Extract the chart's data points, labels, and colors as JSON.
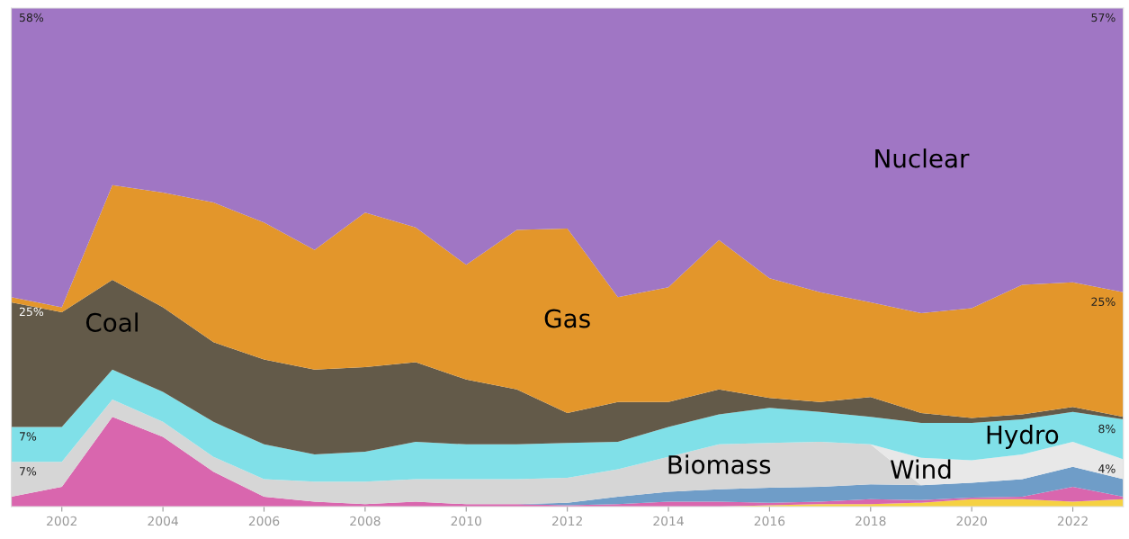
{
  "chart_data": {
    "type": "area",
    "stacked": true,
    "x": [
      2001,
      2002,
      2003,
      2004,
      2005,
      2006,
      2007,
      2008,
      2009,
      2010,
      2011,
      2012,
      2013,
      2014,
      2015,
      2016,
      2017,
      2018,
      2019,
      2020,
      2021,
      2022,
      2023
    ],
    "xlim": [
      2001,
      2023
    ],
    "xticks": [
      2002,
      2004,
      2006,
      2008,
      2010,
      2012,
      2014,
      2016,
      2018,
      2020,
      2022
    ],
    "ylim": [
      0,
      100
    ],
    "tick_labels": "x",
    "grid": false,
    "legend": false,
    "series": [
      {
        "color": "#f5d142",
        "values": [
          0,
          0,
          0,
          0,
          0,
          0,
          0,
          0,
          0,
          0,
          0,
          0,
          0,
          0,
          0,
          0.3,
          0.5,
          0.5,
          0.8,
          1.5,
          1.5,
          1,
          1.5
        ]
      },
      {
        "color": "#d966ae",
        "values": [
          2,
          4,
          18,
          14,
          7,
          2,
          1,
          0.5,
          1,
          0.5,
          0.5,
          0.3,
          0.5,
          1,
          1,
          0.5,
          0.5,
          1,
          0.5,
          0.3,
          0.5,
          3,
          0.5
        ]
      },
      {
        "color": "#6f9dc8",
        "values": [
          0,
          0,
          0,
          0,
          0,
          0,
          0,
          0,
          0,
          0,
          0,
          0.5,
          1.5,
          2,
          2.5,
          3,
          3,
          3,
          3,
          3,
          3.5,
          4,
          3.5
        ]
      },
      {
        "name": "Biomass",
        "color": "#d6d6d6",
        "values": [
          7,
          5,
          3.5,
          3,
          3,
          3.5,
          4,
          4.5,
          4.5,
          5,
          5,
          5,
          5.5,
          7,
          9,
          9,
          9,
          8,
          0,
          0,
          0,
          0,
          0
        ],
        "value_labels": [
          "7%",
          null,
          null,
          null,
          null,
          null,
          null,
          null,
          null,
          null,
          null,
          null,
          null,
          null,
          null,
          null,
          null,
          null,
          null,
          null,
          null,
          null,
          null
        ]
      },
      {
        "name": "Wind",
        "color": "#e8e8e8",
        "values": [
          0,
          0,
          0,
          0,
          0,
          0,
          0,
          0,
          0,
          0,
          0,
          0,
          0,
          0,
          0,
          0,
          0,
          0,
          5.5,
          4.5,
          5,
          5,
          4
        ],
        "value_labels": [
          null,
          null,
          null,
          null,
          null,
          null,
          null,
          null,
          null,
          null,
          null,
          null,
          null,
          null,
          null,
          null,
          null,
          null,
          null,
          null,
          null,
          null,
          "4%"
        ]
      },
      {
        "name": "Hydro",
        "color": "#80e0e8",
        "values": [
          7,
          7,
          6,
          6,
          7,
          7,
          5.5,
          6,
          7.5,
          7,
          7,
          7,
          5.5,
          6,
          6,
          7,
          6,
          5.5,
          7,
          7.5,
          7,
          6,
          8
        ],
        "value_labels": [
          "7%",
          null,
          null,
          null,
          null,
          null,
          null,
          null,
          null,
          null,
          null,
          null,
          null,
          null,
          null,
          null,
          null,
          null,
          null,
          null,
          null,
          null,
          "8%"
        ]
      },
      {
        "name": "Coal",
        "color": "#635a49",
        "values": [
          25,
          23,
          18,
          17,
          16,
          17,
          17,
          17,
          16,
          13,
          11,
          6,
          8,
          5,
          5,
          2,
          2,
          4,
          2,
          1,
          1,
          1,
          0.5
        ],
        "value_labels": [
          "25%",
          null,
          null,
          null,
          null,
          null,
          null,
          null,
          null,
          null,
          null,
          null,
          null,
          null,
          null,
          null,
          null,
          null,
          null,
          null,
          null,
          null,
          null
        ]
      },
      {
        "name": "Gas",
        "color": "#e3962b",
        "values": [
          1,
          1,
          19,
          23,
          28,
          27.5,
          24,
          31,
          27,
          23,
          32,
          37,
          21,
          23,
          30,
          24,
          22,
          19,
          20,
          22,
          26,
          25,
          25
        ],
        "value_labels": [
          null,
          null,
          null,
          null,
          null,
          null,
          null,
          null,
          null,
          null,
          null,
          null,
          null,
          null,
          null,
          null,
          null,
          null,
          null,
          null,
          null,
          null,
          "25%"
        ]
      },
      {
        "name": "Nuclear",
        "color": "#a076c4",
        "values": [
          58,
          60,
          35.5,
          37,
          39,
          43,
          48.5,
          41,
          44,
          51.5,
          44.5,
          44.2,
          58,
          56,
          46.5,
          54.2,
          57,
          59,
          61.2,
          60.2,
          55.5,
          55,
          57
        ],
        "value_labels": [
          "58%",
          null,
          null,
          null,
          null,
          null,
          null,
          null,
          null,
          null,
          null,
          null,
          null,
          null,
          null,
          null,
          null,
          null,
          null,
          null,
          null,
          null,
          "57%"
        ]
      }
    ]
  }
}
